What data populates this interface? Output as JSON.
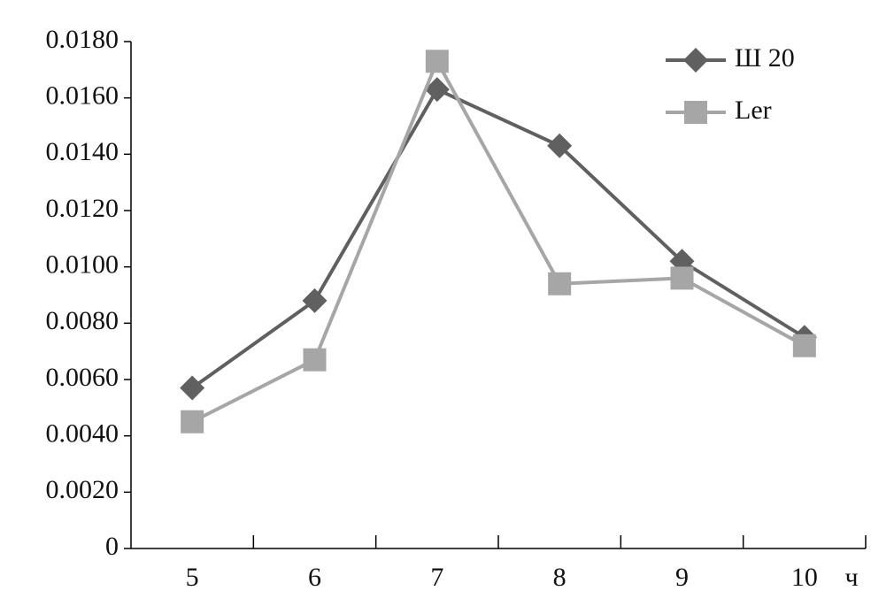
{
  "chart_data": {
    "type": "line",
    "categories": [
      "5",
      "6",
      "7",
      "8",
      "9",
      "10"
    ],
    "xlabel": "ч",
    "series": [
      {
        "name": "Ш 20",
        "color": "#606060",
        "marker": "diamond",
        "values": [
          0.0057,
          0.0088,
          0.0163,
          0.0143,
          0.0102,
          0.0075
        ]
      },
      {
        "name": "Ler",
        "color": "#a6a6a6",
        "marker": "square",
        "values": [
          0.0045,
          0.0067,
          0.0173,
          0.0094,
          0.0096,
          0.0072
        ]
      }
    ],
    "ylim": [
      0,
      0.018
    ],
    "yticks": [
      0,
      {
        "value": 0.002,
        "label": "0.0020"
      },
      {
        "value": 0.004,
        "label": "0.0040"
      },
      {
        "value": 0.006,
        "label": "0.0060"
      },
      {
        "value": 0.008,
        "label": "0.0080"
      },
      {
        "value": 0.01,
        "label": "0.0100"
      },
      {
        "value": 0.012,
        "label": "0.0120"
      },
      {
        "value": 0.014,
        "label": "0.0140"
      },
      {
        "value": 0.016,
        "label": "0.0160"
      },
      {
        "value": 0.018,
        "label": "0.0180"
      }
    ],
    "grid": false,
    "legend": "top-right"
  }
}
